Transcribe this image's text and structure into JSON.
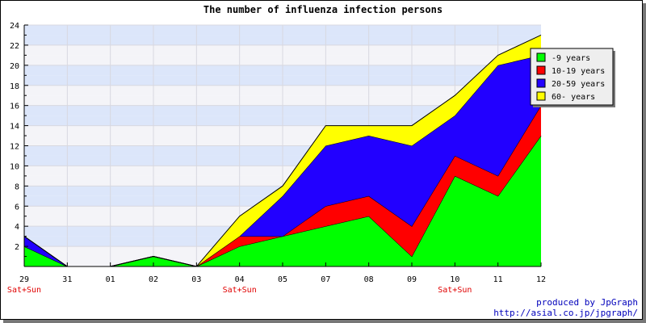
{
  "chart_data": {
    "type": "area",
    "stacked": true,
    "title": "The number of influenza infection persons",
    "categories": [
      "29",
      "31",
      "01",
      "02",
      "03",
      "04",
      "05",
      "07",
      "08",
      "09",
      "10",
      "11",
      "12"
    ],
    "weekend_labels": [
      "Sat+Sun",
      "",
      "",
      "",
      "",
      "Sat+Sun",
      "",
      "",
      "",
      "",
      "Sat+Sun",
      "",
      ""
    ],
    "series": [
      {
        "name": "-9 years",
        "color": "#00ff00",
        "values": [
          2,
          0,
          0,
          1,
          0,
          2,
          3,
          4,
          5,
          1,
          9,
          7,
          13
        ]
      },
      {
        "name": "10-19 years",
        "color": "#ff0000",
        "values": [
          0,
          0,
          0,
          0,
          0,
          1,
          0,
          2,
          2,
          3,
          2,
          2,
          3
        ]
      },
      {
        "name": "20-59 years",
        "color": "#2200ff",
        "values": [
          1,
          0,
          0,
          0,
          0,
          0,
          4,
          6,
          6,
          8,
          4,
          11,
          5
        ]
      },
      {
        "name": "60- years",
        "color": "#ffff00",
        "values": [
          0,
          0,
          0,
          0,
          0,
          2,
          1,
          2,
          1,
          2,
          2,
          1,
          2
        ]
      }
    ],
    "ylim": [
      0,
      24
    ],
    "yticks": [
      2,
      4,
      6,
      8,
      10,
      12,
      14,
      16,
      18,
      20,
      22,
      24
    ],
    "grid": true,
    "band_colors": [
      "#f4f4f8",
      "#dce6fa"
    ],
    "legend_position": "top-right"
  },
  "credit": {
    "line1": "produced by JpGraph",
    "line2": "http://asial.co.jp/jpgraph/"
  }
}
